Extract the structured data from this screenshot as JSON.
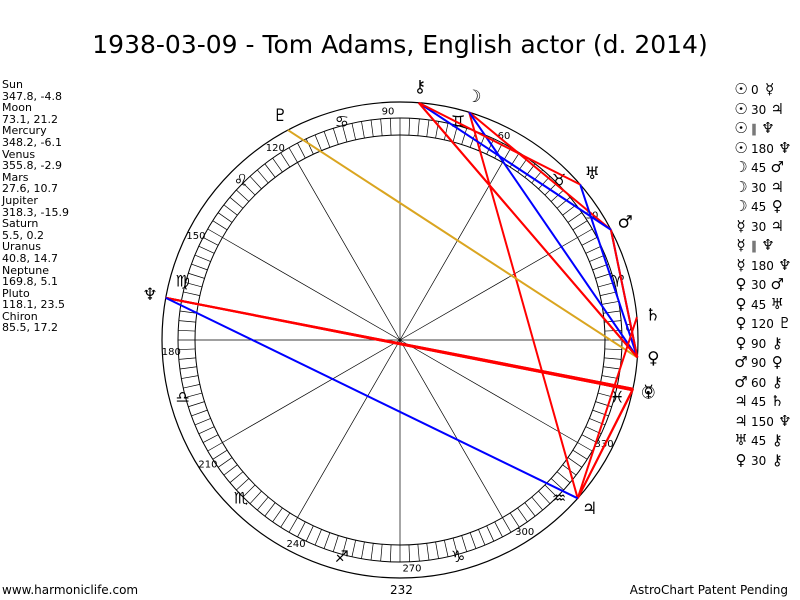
{
  "title": "1938-03-09 - Tom Adams, English actor (d. 2014)",
  "planets": [
    {
      "name": "Sun",
      "pos": "347.8, -4.8"
    },
    {
      "name": "Moon",
      "pos": "73.1, 21.2"
    },
    {
      "name": "Mercury",
      "pos": "348.2, -6.1"
    },
    {
      "name": "Venus",
      "pos": "355.8, -2.9"
    },
    {
      "name": "Mars",
      "pos": "27.6, 10.7"
    },
    {
      "name": "Jupiter",
      "pos": "318.3, -15.9"
    },
    {
      "name": "Saturn",
      "pos": "5.5, 0.2"
    },
    {
      "name": "Uranus",
      "pos": "40.8, 14.7"
    },
    {
      "name": "Neptune",
      "pos": "169.8, 5.1"
    },
    {
      "name": "Pluto",
      "pos": "118.1, 23.5"
    },
    {
      "name": "Chiron",
      "pos": "85.5, 17.2"
    }
  ],
  "planet_glyphs": {
    "Sun": "☉",
    "Moon": "☽",
    "Mercury": "☿",
    "Venus": "♀",
    "Mars": "♂",
    "Jupiter": "♃",
    "Saturn": "♄",
    "Uranus": "♅",
    "Neptune": "♆",
    "Pluto": "♇",
    "Chiron": "⚷"
  },
  "ring_labels": [
    "0",
    "30",
    "60",
    "90",
    "120",
    "150",
    "180",
    "210",
    "240",
    "270",
    "300",
    "330"
  ],
  "sign_glyphs": [
    "♈",
    "♉",
    "♊",
    "♋",
    "♌",
    "♍",
    "♎",
    "♏",
    "♐",
    "♑",
    "♒",
    "♓"
  ],
  "bottom_value": "232",
  "aspects": [
    {
      "p1": "Sun",
      "p2": "Mercury",
      "aspect": "0",
      "color": "#ff0000"
    },
    {
      "p1": "Sun",
      "p2": "Jupiter",
      "aspect": "30",
      "color": "#ff0000"
    },
    {
      "p1": "Sun",
      "p2": "Neptune",
      "aspect": "∥",
      "color": "#ff0000"
    },
    {
      "p1": "Sun",
      "p2": "Neptune",
      "aspect": "180",
      "color": "#ff0000"
    },
    {
      "p1": "Moon",
      "p2": "Mars",
      "aspect": "45",
      "color": "#ff0000"
    },
    {
      "p1": "Moon",
      "p2": "Jupiter",
      "aspect": "30",
      "color": "#ff0000"
    },
    {
      "p1": "Moon",
      "p2": "Venus",
      "aspect": "45",
      "color": "#0000ff"
    },
    {
      "p1": "Mercury",
      "p2": "Jupiter",
      "aspect": "30",
      "color": "#ff0000"
    },
    {
      "p1": "Mercury",
      "p2": "Neptune",
      "aspect": "∥",
      "color": "#ff0000"
    },
    {
      "p1": "Mercury",
      "p2": "Neptune",
      "aspect": "180",
      "color": "#ff0000"
    },
    {
      "p1": "Venus",
      "p2": "Mars",
      "aspect": "30",
      "color": "#0000ff"
    },
    {
      "p1": "Venus",
      "p2": "Uranus",
      "aspect": "45",
      "color": "#0000ff"
    },
    {
      "p1": "Venus",
      "p2": "Pluto",
      "aspect": "120",
      "color": "#daa520"
    },
    {
      "p1": "Venus",
      "p2": "Chiron",
      "aspect": "90",
      "color": "#ff0000"
    },
    {
      "p1": "Mars",
      "p2": "Venus",
      "aspect": "90",
      "color": "#ff0000"
    },
    {
      "p1": "Mars",
      "p2": "Chiron",
      "aspect": "60",
      "color": "#0000ff"
    },
    {
      "p1": "Jupiter",
      "p2": "Saturn",
      "aspect": "45",
      "color": "#ff0000"
    },
    {
      "p1": "Jupiter",
      "p2": "Neptune",
      "aspect": "150",
      "color": "#0000ff"
    },
    {
      "p1": "Uranus",
      "p2": "Chiron",
      "aspect": "45",
      "color": "#ff0000"
    },
    {
      "p1": "Venus",
      "p2": "Chiron",
      "aspect": "30",
      "color": "#ff0000"
    }
  ],
  "footer": {
    "left": "www.harmoniclife.com",
    "right": "AstroChart Patent Pending"
  }
}
